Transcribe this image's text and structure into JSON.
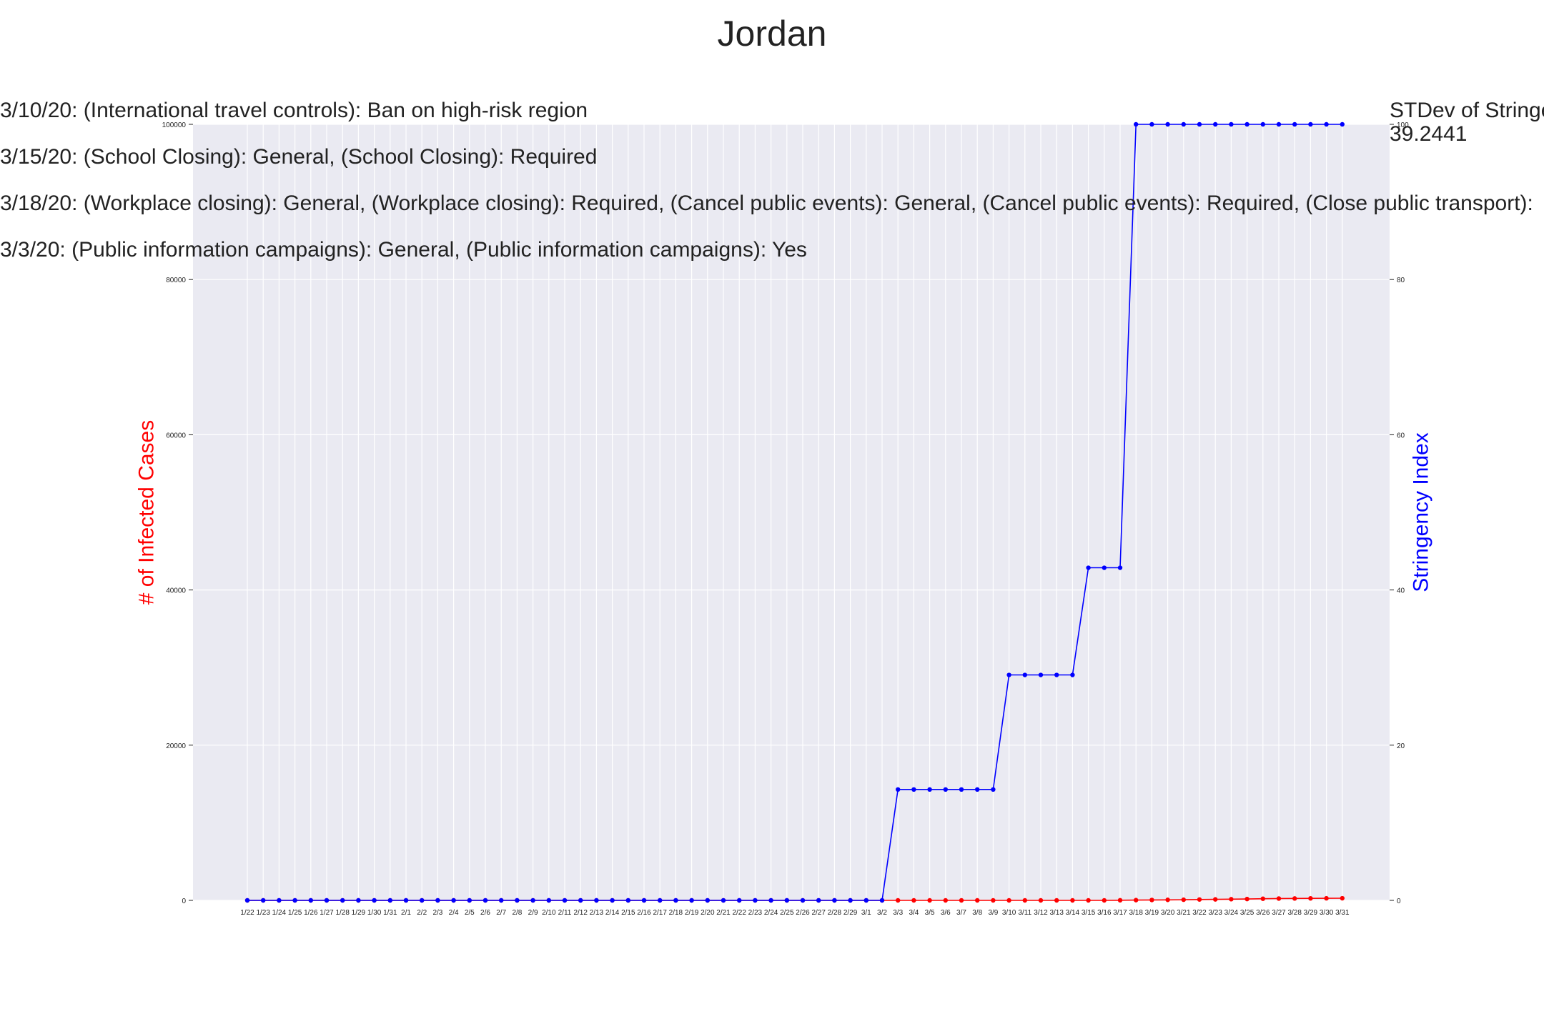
{
  "chart_data": {
    "type": "line",
    "title": "Jordan",
    "ylabel_left": "# of Infected Cases",
    "ylabel_right": "Stringency Index",
    "ylim_left": [
      0,
      100000
    ],
    "ylim_right": [
      0,
      100
    ],
    "yticks_left": [
      "0",
      "20000",
      "40000",
      "60000",
      "80000",
      "100000"
    ],
    "yticks_right": [
      "0",
      "20",
      "40",
      "60",
      "80",
      "100"
    ],
    "grid": true,
    "background": "#EAEAF2",
    "x": [
      "1/22",
      "1/23",
      "1/24",
      "1/25",
      "1/26",
      "1/27",
      "1/28",
      "1/29",
      "1/30",
      "1/31",
      "2/1",
      "2/2",
      "2/3",
      "2/4",
      "2/5",
      "2/6",
      "2/7",
      "2/8",
      "2/9",
      "2/10",
      "2/11",
      "2/12",
      "2/13",
      "2/14",
      "2/15",
      "2/16",
      "2/17",
      "2/18",
      "2/19",
      "2/20",
      "2/21",
      "2/22",
      "2/23",
      "2/24",
      "2/25",
      "2/26",
      "2/27",
      "2/28",
      "2/29",
      "3/1",
      "3/2",
      "3/3",
      "3/4",
      "3/5",
      "3/6",
      "3/7",
      "3/8",
      "3/9",
      "3/10",
      "3/11",
      "3/12",
      "3/13",
      "3/14",
      "3/15",
      "3/16",
      "3/17",
      "3/18",
      "3/19",
      "3/20",
      "3/21",
      "3/22",
      "3/23",
      "3/24",
      "3/25",
      "3/26",
      "3/27",
      "3/28",
      "3/29",
      "3/30",
      "3/31"
    ],
    "series": [
      {
        "axis": "left",
        "color": "#FF0000",
        "values": [
          0,
          0,
          0,
          0,
          0,
          0,
          0,
          0,
          0,
          0,
          0,
          0,
          0,
          0,
          0,
          0,
          0,
          0,
          0,
          0,
          0,
          0,
          0,
          0,
          0,
          0,
          0,
          0,
          0,
          0,
          0,
          0,
          0,
          0,
          0,
          0,
          0,
          0,
          0,
          0,
          1,
          1,
          1,
          1,
          1,
          1,
          1,
          1,
          1,
          1,
          1,
          1,
          1,
          1,
          1,
          17,
          34,
          52,
          69,
          85,
          112,
          127,
          154,
          172,
          212,
          235,
          246,
          259,
          268,
          274
        ]
      },
      {
        "axis": "right",
        "color": "#0000FF",
        "values": [
          0,
          0,
          0,
          0,
          0,
          0,
          0,
          0,
          0,
          0,
          0,
          0,
          0,
          0,
          0,
          0,
          0,
          0,
          0,
          0,
          0,
          0,
          0,
          0,
          0,
          0,
          0,
          0,
          0,
          0,
          0,
          0,
          0,
          0,
          0,
          0,
          0,
          0,
          0,
          0,
          0,
          14.29,
          14.29,
          14.29,
          14.29,
          14.29,
          14.29,
          14.29,
          29.05,
          29.05,
          29.05,
          29.05,
          29.05,
          42.86,
          42.86,
          42.86,
          100,
          100,
          100,
          100,
          100,
          100,
          100,
          100,
          100,
          100,
          100,
          100,
          100,
          100
        ]
      }
    ],
    "annotations": [
      "3/10/20: (International travel controls): Ban on high-risk region",
      "3/15/20: (School Closing): General, (School Closing): Required",
      "3/18/20: (Workplace closing): General, (Workplace closing): Required, (Cancel public events): General, (Cancel public events): Required, (Close public transport):",
      "3/3/20: (Public information campaigns): General, (Public information campaigns): Yes"
    ],
    "stdev_label": "STDev of Stringe",
    "stdev_value": "39.2441"
  }
}
